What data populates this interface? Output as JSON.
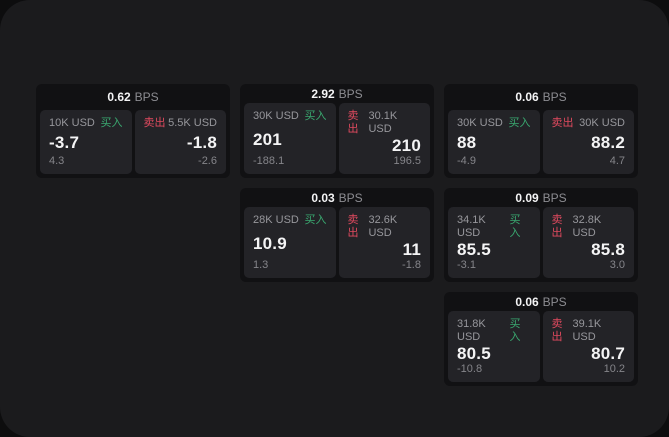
{
  "labels": {
    "bps": "BPS",
    "buy": "买入",
    "sell": "卖出"
  },
  "colors": {
    "outer_background": "#0d0d0e",
    "window_background": "#1b1b1d",
    "card_background": "#111113",
    "panel_background": "#232327",
    "buy_green": "#3aa970",
    "sell_red": "#e14a5f",
    "primary_text": "#f4f4f5",
    "muted_text": "#97979c"
  },
  "cards": [
    {
      "bps": "0.62",
      "buy": {
        "amount": "10K USD",
        "value": "-3.7",
        "sub": "4.3"
      },
      "sell": {
        "amount": "5.5K USD",
        "value": "-1.8",
        "sub": "-2.6"
      }
    },
    {
      "bps": "2.92",
      "buy": {
        "amount": "30K USD",
        "value": "201",
        "sub": "-188.1"
      },
      "sell": {
        "amount": "30.1K USD",
        "value": "210",
        "sub": "196.5"
      }
    },
    {
      "bps": "0.06",
      "buy": {
        "amount": "30K USD",
        "value": "88",
        "sub": "-4.9"
      },
      "sell": {
        "amount": "30K USD",
        "value": "88.2",
        "sub": "4.7"
      }
    },
    {
      "bps": "0.03",
      "buy": {
        "amount": "28K USD",
        "value": "10.9",
        "sub": "1.3"
      },
      "sell": {
        "amount": "32.6K USD",
        "value": "11",
        "sub": "-1.8"
      }
    },
    {
      "bps": "0.09",
      "buy": {
        "amount": "34.1K USD",
        "value": "85.5",
        "sub": "-3.1"
      },
      "sell": {
        "amount": "32.8K USD",
        "value": "85.8",
        "sub": "3.0"
      }
    },
    {
      "bps": "0.06",
      "buy": {
        "amount": "31.8K USD",
        "value": "80.5",
        "sub": "-10.8"
      },
      "sell": {
        "amount": "39.1K USD",
        "value": "80.7",
        "sub": "10.2"
      }
    }
  ]
}
